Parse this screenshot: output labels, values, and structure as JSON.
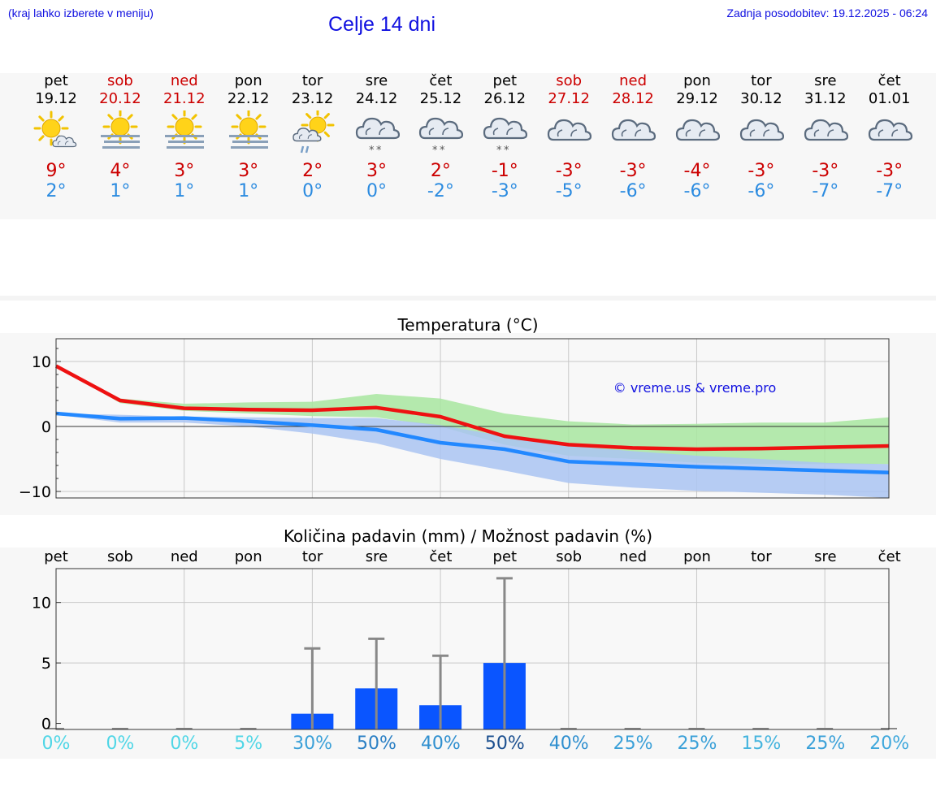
{
  "header": {
    "hint": "(kraj lahko izberete v meniju)",
    "title": "Celje 14 dni",
    "updated": "Zadnja posodobitev: 19.12.2025 - 06:24"
  },
  "days": [
    {
      "name": "pet",
      "date": "19.12",
      "weekend": false,
      "icon": "sun-cloud-icon",
      "max": "9°",
      "min": "2°",
      "precip_pct": "0%",
      "pct_color": "#4fd6e6"
    },
    {
      "name": "sob",
      "date": "20.12",
      "weekend": true,
      "icon": "sun-fog-icon",
      "max": "4°",
      "min": "1°",
      "precip_pct": "0%",
      "pct_color": "#4fd6e6"
    },
    {
      "name": "ned",
      "date": "21.12",
      "weekend": true,
      "icon": "sun-fog-icon",
      "max": "3°",
      "min": "1°",
      "precip_pct": "0%",
      "pct_color": "#4fd6e6"
    },
    {
      "name": "pon",
      "date": "22.12",
      "weekend": false,
      "icon": "sun-fog-icon",
      "max": "3°",
      "min": "1°",
      "precip_pct": "5%",
      "pct_color": "#4fd6e6"
    },
    {
      "name": "tor",
      "date": "23.12",
      "weekend": false,
      "icon": "sun-cloud-rain-icon",
      "max": "2°",
      "min": "0°",
      "precip_pct": "30%",
      "pct_color": "#3aa0d8"
    },
    {
      "name": "sre",
      "date": "24.12",
      "weekend": false,
      "icon": "cloud-snow-icon",
      "max": "3°",
      "min": "0°",
      "precip_pct": "50%",
      "pct_color": "#2a7fc4"
    },
    {
      "name": "čet",
      "date": "25.12",
      "weekend": false,
      "icon": "cloud-snow-icon",
      "max": "2°",
      "min": "-2°",
      "precip_pct": "40%",
      "pct_color": "#2f8fcf"
    },
    {
      "name": "pet",
      "date": "26.12",
      "weekend": false,
      "icon": "cloud-snow-icon",
      "max": "-1°",
      "min": "-3°",
      "precip_pct": "50%",
      "pct_color": "#1b4f8f"
    },
    {
      "name": "sob",
      "date": "27.12",
      "weekend": true,
      "icon": "cloud-icon",
      "max": "-3°",
      "min": "-5°",
      "precip_pct": "40%",
      "pct_color": "#2f8fcf"
    },
    {
      "name": "ned",
      "date": "28.12",
      "weekend": true,
      "icon": "cloud-icon",
      "max": "-3°",
      "min": "-6°",
      "precip_pct": "25%",
      "pct_color": "#3aa0d8"
    },
    {
      "name": "pon",
      "date": "29.12",
      "weekend": false,
      "icon": "cloud-icon",
      "max": "-4°",
      "min": "-6°",
      "precip_pct": "25%",
      "pct_color": "#3aa0d8"
    },
    {
      "name": "tor",
      "date": "30.12",
      "weekend": false,
      "icon": "cloud-icon",
      "max": "-3°",
      "min": "-6°",
      "precip_pct": "15%",
      "pct_color": "#44b4de"
    },
    {
      "name": "sre",
      "date": "31.12",
      "weekend": false,
      "icon": "cloud-icon",
      "max": "-3°",
      "min": "-7°",
      "precip_pct": "25%",
      "pct_color": "#3aa0d8"
    },
    {
      "name": "čet",
      "date": "01.01",
      "weekend": false,
      "icon": "cloud-icon",
      "max": "-3°",
      "min": "-7°",
      "precip_pct": "20%",
      "pct_color": "#3fa8dc"
    }
  ],
  "chart_data": [
    {
      "type": "line",
      "title": "Temperatura (°C)",
      "watermark": "© vreme.us & vreme.pro",
      "x": [
        0,
        1,
        2,
        3,
        4,
        5,
        6,
        7,
        8,
        9,
        10,
        11,
        12,
        13
      ],
      "ylim": [
        -11,
        13.5
      ],
      "yticks": [
        -10,
        0,
        10
      ],
      "ytick_labels": [
        "−10",
        "0",
        "10"
      ],
      "series": [
        {
          "name": "max",
          "color": "#ee1111",
          "values": [
            9.3,
            4.0,
            2.8,
            2.6,
            2.5,
            2.9,
            1.5,
            -1.5,
            -2.8,
            -3.3,
            -3.5,
            -3.4,
            -3.2,
            -3.0
          ]
        },
        {
          "name": "min",
          "color": "#2288ff",
          "values": [
            2.0,
            1.2,
            1.3,
            0.8,
            0.2,
            -0.5,
            -2.5,
            -3.5,
            -5.4,
            -5.8,
            -6.2,
            -6.5,
            -6.8,
            -7.1
          ]
        }
      ],
      "max_band": {
        "color": "#a8e6a0",
        "low": [
          9.3,
          3.6,
          2.4,
          2.0,
          1.6,
          1.4,
          0.0,
          -2.8,
          -4.5,
          -5.0,
          -5.6,
          -5.8,
          -5.8,
          -5.8
        ],
        "high": [
          9.3,
          4.3,
          3.5,
          3.7,
          3.8,
          5.0,
          4.3,
          2.0,
          0.8,
          0.3,
          0.4,
          0.6,
          0.6,
          1.4
        ]
      },
      "min_band": {
        "color": "#aac4f2",
        "low": [
          1.8,
          0.6,
          0.6,
          0.0,
          -1.1,
          -2.6,
          -5.0,
          -6.8,
          -8.7,
          -9.4,
          -9.9,
          -10.2,
          -10.5,
          -11.0
        ],
        "high": [
          2.0,
          1.8,
          1.5,
          1.4,
          1.3,
          1.3,
          0.2,
          -1.5,
          -3.0,
          -3.8,
          -4.5,
          -5.0,
          -5.6,
          -5.8
        ]
      }
    },
    {
      "type": "bar",
      "title": "Količina padavin (mm) / Možnost padavin (%)",
      "categories": [
        "pet",
        "sob",
        "ned",
        "pon",
        "tor",
        "sre",
        "čet",
        "pet",
        "sob",
        "ned",
        "pon",
        "tor",
        "sre",
        "čet"
      ],
      "values": [
        0,
        0,
        0,
        0,
        0.8,
        2.9,
        1.5,
        5.0,
        0,
        0,
        0,
        0,
        0,
        0
      ],
      "error_high": [
        0,
        0,
        0,
        0,
        6.2,
        7.0,
        5.6,
        12.0,
        0,
        0,
        0,
        0,
        0,
        0
      ],
      "bar_color": "#0a55ff",
      "whisker_color": "#888888",
      "ylim": [
        -0.5,
        12.8
      ],
      "yticks": [
        0,
        5,
        10
      ],
      "ytick_labels": [
        "0",
        "5",
        "10"
      ]
    }
  ]
}
